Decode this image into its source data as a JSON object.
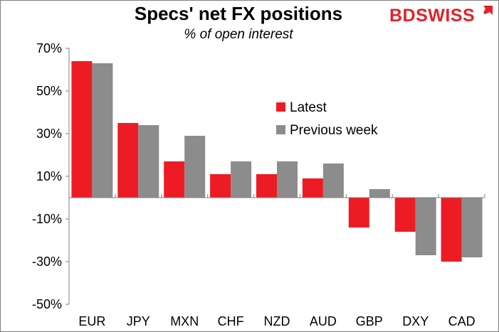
{
  "title": "Specs' net FX positions",
  "subtitle": "% of open interest",
  "logo": {
    "text": "BDSWISS",
    "icon": "arrow-icon",
    "color": "#e3212a"
  },
  "colors": {
    "latest": "#ed1c24",
    "previous": "#8c8c8c"
  },
  "chart_data": {
    "type": "bar",
    "title": "Specs' net FX positions",
    "subtitle": "% of open interest",
    "categories": [
      "EUR",
      "JPY",
      "MXN",
      "CHF",
      "NZD",
      "AUD",
      "GBP",
      "DXY",
      "CAD"
    ],
    "series": [
      {
        "name": "Latest",
        "values": [
          64,
          35,
          17,
          11,
          11,
          9,
          -14,
          -16,
          -30
        ]
      },
      {
        "name": "Previous week",
        "values": [
          63,
          34,
          29,
          17,
          17,
          16,
          4,
          -27,
          -28
        ]
      }
    ],
    "ylim": [
      -50,
      70
    ],
    "yticks": [
      "70%",
      "50%",
      "30%",
      "10%",
      "-10%",
      "-30%",
      "-50%"
    ],
    "ytick_values": [
      70,
      50,
      30,
      10,
      -10,
      -30,
      -50
    ],
    "grid": false,
    "legend_position": "center-right"
  }
}
